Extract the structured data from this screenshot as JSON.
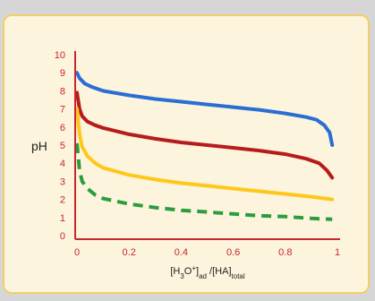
{
  "chart_data": {
    "type": "line",
    "ylabel": "pH",
    "xlabel": {
      "bracket_open": "[H",
      "sub1": "3",
      "mid": "O",
      "sup": "+",
      "close": "]",
      "sub2": "ad",
      "slash": " /[HA]",
      "sub3": "total"
    },
    "xlim": [
      0,
      1
    ],
    "ylim": [
      0,
      10
    ],
    "x_ticks": [
      "0",
      "0.2",
      "0.4",
      "0.6",
      "0.8",
      "1"
    ],
    "y_ticks": [
      "0",
      "1",
      "2",
      "3",
      "4",
      "5",
      "6",
      "7",
      "8",
      "9",
      "10"
    ],
    "grid": false,
    "legend": "none",
    "series": [
      {
        "color": "#2a6ed4",
        "dash": false,
        "x": [
          0.0,
          0.01,
          0.03,
          0.06,
          0.1,
          0.2,
          0.3,
          0.4,
          0.5,
          0.6,
          0.7,
          0.8,
          0.88,
          0.92,
          0.95,
          0.97,
          0.98
        ],
        "y": [
          9.0,
          8.7,
          8.4,
          8.2,
          8.0,
          7.75,
          7.55,
          7.4,
          7.25,
          7.1,
          6.95,
          6.75,
          6.55,
          6.4,
          6.1,
          5.7,
          5.0
        ]
      },
      {
        "color": "#b71c1c",
        "dash": false,
        "x": [
          0.0,
          0.01,
          0.02,
          0.04,
          0.07,
          0.1,
          0.2,
          0.3,
          0.4,
          0.5,
          0.6,
          0.7,
          0.8,
          0.88,
          0.93,
          0.96,
          0.98
        ],
        "y": [
          7.9,
          7.0,
          6.6,
          6.3,
          6.1,
          5.95,
          5.6,
          5.35,
          5.15,
          5.0,
          4.85,
          4.7,
          4.5,
          4.25,
          4.0,
          3.6,
          3.2
        ]
      },
      {
        "color": "#ffc71a",
        "dash": false,
        "x": [
          0.0,
          0.01,
          0.02,
          0.04,
          0.07,
          0.1,
          0.2,
          0.3,
          0.4,
          0.5,
          0.6,
          0.7,
          0.8,
          0.9,
          0.98
        ],
        "y": [
          7.0,
          5.6,
          4.9,
          4.4,
          4.0,
          3.75,
          3.35,
          3.1,
          2.9,
          2.75,
          2.6,
          2.45,
          2.3,
          2.15,
          2.0
        ]
      },
      {
        "color": "#2a9d3f",
        "dash": true,
        "x": [
          0.0,
          0.01,
          0.02,
          0.04,
          0.07,
          0.1,
          0.2,
          0.3,
          0.4,
          0.5,
          0.6,
          0.7,
          0.8,
          0.9,
          0.98
        ],
        "y": [
          5.1,
          3.6,
          3.0,
          2.6,
          2.25,
          2.05,
          1.75,
          1.55,
          1.4,
          1.3,
          1.2,
          1.1,
          1.05,
          0.95,
          0.9
        ]
      }
    ]
  }
}
